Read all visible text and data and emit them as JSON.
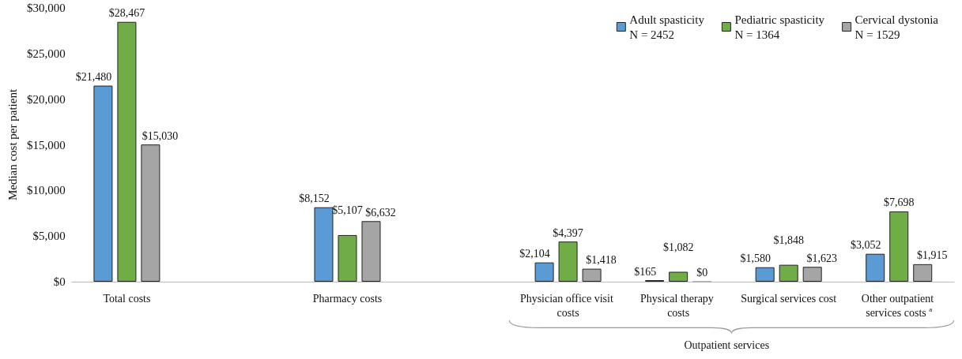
{
  "chart_data": {
    "type": "bar",
    "ylabel": "Median cost per patient",
    "categories": [
      "Total costs",
      null,
      "Pharmacy costs",
      null,
      "Physician office visit costs",
      "Physical therapy costs",
      "Surgical services cost",
      "Other outpatient services costs $^{a}$"
    ],
    "series": [
      {
        "name": "Adult spasticity\nN = 2452",
        "color": "#5b9bd5",
        "values": [
          21480,
          null,
          8152,
          null,
          2104,
          165,
          1580,
          3052
        ],
        "value_labels": [
          "$21,480",
          null,
          "$8,152",
          null,
          "$2,104",
          "$165",
          "$1,580",
          "$3,052"
        ]
      },
      {
        "name": "Pediatric spasticity\nN = 1364",
        "color": "#70ad47",
        "values": [
          28467,
          null,
          5107,
          null,
          4397,
          1082,
          1848,
          7698
        ],
        "value_labels": [
          "$28,467",
          null,
          "$5,107",
          null,
          "$4,397",
          "$1,082",
          "$1,848",
          "$7,698"
        ]
      },
      {
        "name": "Cervical dystonia\nN = 1529",
        "color": "#a5a5a5",
        "values": [
          15030,
          null,
          6632,
          null,
          1418,
          0,
          1623,
          1915
        ],
        "value_labels": [
          "$15,030",
          null,
          "$6,632",
          null,
          "$1,418",
          "$0",
          "$1,623",
          "$1,915"
        ]
      }
    ],
    "ylim": [
      0,
      30000
    ],
    "yticks": [
      {
        "value": 0,
        "label": "$0"
      },
      {
        "value": 5000,
        "label": "$5,000"
      },
      {
        "value": 10000,
        "label": "$10,000"
      },
      {
        "value": 15000,
        "label": "$15,000"
      },
      {
        "value": 20000,
        "label": "$20,000"
      },
      {
        "value": 25000,
        "label": "$25,000"
      },
      {
        "value": 30000,
        "label": "$30,000"
      }
    ],
    "grid": false,
    "legend": "top right",
    "annotations": [
      "Outpatient services"
    ]
  }
}
